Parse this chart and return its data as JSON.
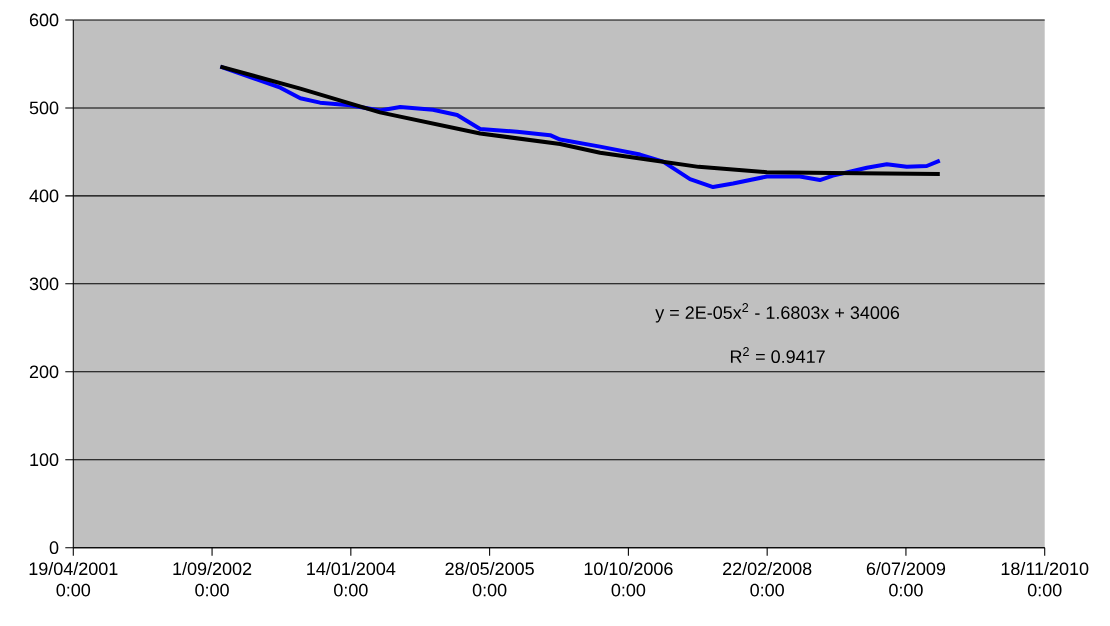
{
  "chart_data": {
    "type": "line",
    "series": [
      {
        "color": "#0000ff",
        "x": [
          "2002-10-01",
          "2003-05-05",
          "2003-07-16",
          "2003-09-25",
          "2004-01-11",
          "2004-04-28",
          "2004-07-10",
          "2004-11-05",
          "2005-01-31",
          "2005-04-24",
          "2005-09-04",
          "2006-01-01",
          "2006-02-06",
          "2006-06-30",
          "2006-11-21",
          "2007-02-12",
          "2007-05-20",
          "2007-08-11",
          "2007-10-22",
          "2008-02-21",
          "2008-06-19",
          "2008-08-30",
          "2008-10-16",
          "2009-02-15",
          "2009-04-28",
          "2009-07-09",
          "2009-09-19",
          "2009-11-05"
        ],
        "values": [
          547,
          523,
          511,
          506,
          503,
          497,
          501,
          498,
          492,
          476,
          473,
          469,
          464,
          456,
          447,
          439,
          419,
          410,
          414,
          422,
          422,
          418,
          423,
          432,
          436,
          433,
          434,
          440
        ]
      },
      {
        "color": "#000000",
        "x": [
          "2002-10-01",
          "2003-07-16",
          "2004-04-28",
          "2005-04-24",
          "2006-02-06",
          "2006-06-30",
          "2006-12-23",
          "2007-06-20",
          "2008-02-21",
          "2008-10-16",
          "2009-11-05"
        ],
        "values": [
          547,
          522,
          495,
          471,
          459,
          449,
          441,
          433,
          427,
          426,
          425
        ]
      }
    ],
    "xlim": [
      "2001-04-19",
      "2010-11-18"
    ],
    "xticks": [
      {
        "value": "2001-04-19",
        "label": "19/04/2001 0:00"
      },
      {
        "value": "2002-09-01",
        "label": "1/09/2002 0:00"
      },
      {
        "value": "2004-01-14",
        "label": "14/01/2004 0:00"
      },
      {
        "value": "2005-05-28",
        "label": "28/05/2005 0:00"
      },
      {
        "value": "2006-10-10",
        "label": "10/10/2006 0:00"
      },
      {
        "value": "2008-02-22",
        "label": "22/02/2008 0:00"
      },
      {
        "value": "2009-07-06",
        "label": "6/07/2009 0:00"
      },
      {
        "value": "2010-11-18",
        "label": "18/11/2010 0:00"
      }
    ],
    "ylim": [
      0,
      600
    ],
    "yticks": [
      0,
      100,
      200,
      300,
      400,
      500,
      600
    ],
    "grid": "y",
    "annotations": [
      "y = 2E-05x$^{2}$ - 1.6803x + 34006",
      "R$^{2}$ = 0.9417"
    ]
  }
}
